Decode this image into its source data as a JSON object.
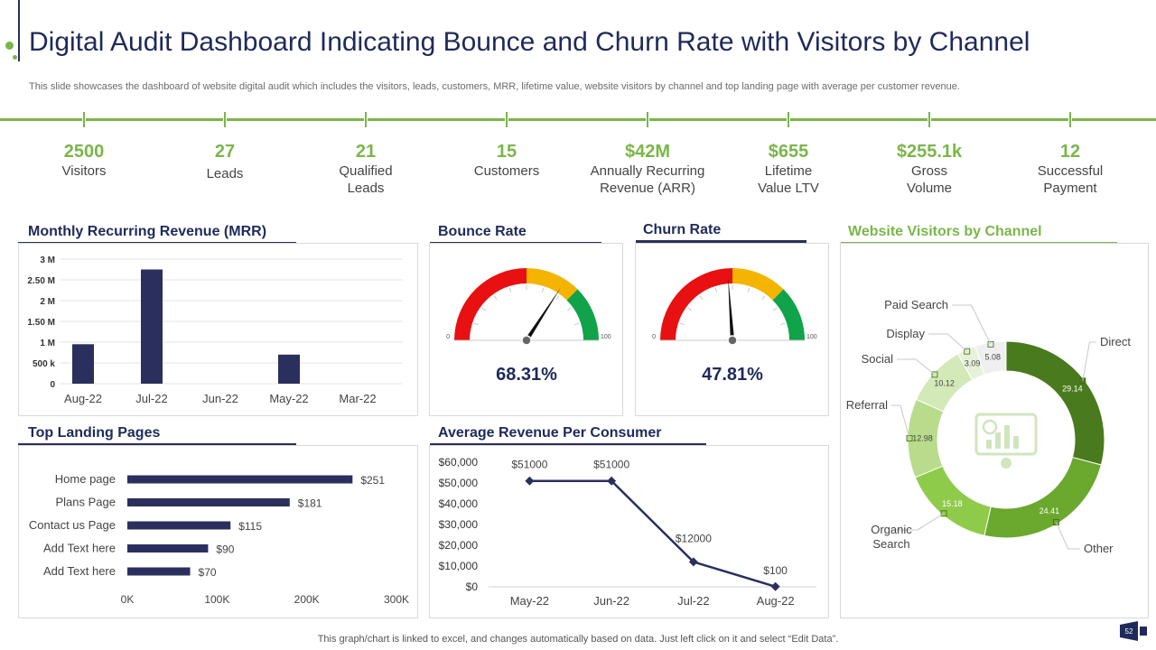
{
  "header": {
    "title": "Digital Audit Dashboard Indicating Bounce and Churn Rate with Visitors by Channel",
    "subtitle": "This slide showcases the dashboard of website digital audit which includes the visitors, leads, customers, MRR, lifetime value, website visitors by channel and top landing page with average per customer revenue."
  },
  "kpis": [
    {
      "value": "2500",
      "label": "Visitors"
    },
    {
      "value": "27",
      "label": "Leads"
    },
    {
      "value": "21",
      "label": "Qualified\nLeads"
    },
    {
      "value": "15",
      "label": "Customers"
    },
    {
      "value": "$42M",
      "label": "Annually  Recurring\nRevenue (ARR)"
    },
    {
      "value": "$655",
      "label": "Lifetime\nValue LTV"
    },
    {
      "value": "$255.1k",
      "label": "Gross\nVolume"
    },
    {
      "value": "12",
      "label": "Successful\nPayment"
    }
  ],
  "sections": {
    "mrr": "Monthly Recurring Revenue (MRR)",
    "bounce": "Bounce Rate",
    "churn": "Churn  Rate",
    "visitors": "Website Visitors  by Channel",
    "landing": "Top Landing Pages",
    "arpc": "Average Revenue Per Consumer"
  },
  "chart_data": [
    {
      "id": "mrr",
      "type": "bar",
      "title": "Monthly Recurring Revenue (MRR)",
      "categories": [
        "Aug-22",
        "Jul-22",
        "Jun-22",
        "May-22",
        "Mar-22"
      ],
      "values": [
        950000,
        2750000,
        0,
        700000,
        0
      ],
      "ylim": [
        0,
        3000000
      ],
      "yticks": [
        0,
        500000,
        1000000,
        1500000,
        2000000,
        2500000,
        3000000
      ],
      "ytick_labels": [
        "0",
        "500 k",
        "1 M",
        "1.50 M",
        "2 M",
        "2.50 M",
        "3 M"
      ],
      "color": "#2b2f5e",
      "grid": true
    },
    {
      "id": "bounce",
      "type": "gauge",
      "title": "Bounce Rate",
      "value": 68.31,
      "label": "68.31%",
      "min_label": "0",
      "max_label": "100",
      "bands": [
        {
          "from": 0,
          "to": 50,
          "color": "#e81010"
        },
        {
          "from": 50,
          "to": 75,
          "color": "#f4b400"
        },
        {
          "from": 75,
          "to": 100,
          "color": "#10a34a"
        }
      ]
    },
    {
      "id": "churn",
      "type": "gauge",
      "title": "Churn  Rate",
      "value": 47.81,
      "label": "47.81%",
      "min_label": "0",
      "max_label": "100",
      "bands": [
        {
          "from": 0,
          "to": 50,
          "color": "#e81010"
        },
        {
          "from": 50,
          "to": 75,
          "color": "#f4b400"
        },
        {
          "from": 75,
          "to": 100,
          "color": "#10a34a"
        }
      ]
    },
    {
      "id": "visitors",
      "type": "pie",
      "title": "Website Visitors  by Channel",
      "donut": true,
      "slices": [
        {
          "name": "Direct",
          "value": 29.14,
          "label": "29.14",
          "color": "#4a7a1e"
        },
        {
          "name": "Other",
          "value": 24.41,
          "label": "24.41",
          "color": "#6aa82e"
        },
        {
          "name": "Organic\nSearch",
          "value": 15.18,
          "label": "15.18",
          "color": "#8fcb4a"
        },
        {
          "name": "Referral",
          "value": 12.98,
          "label": "12.98",
          "color": "#b9dc8c"
        },
        {
          "name": "Social",
          "value": 10.12,
          "label": "10.12",
          "color": "#d3e9b8"
        },
        {
          "name": "Display",
          "value": 3.09,
          "label": "3.09",
          "color": "#e6f2d8"
        },
        {
          "name": "Paid Search",
          "value": 5.08,
          "label": "5.08",
          "color": "#efefef"
        }
      ]
    },
    {
      "id": "landing",
      "type": "bar",
      "orientation": "horizontal",
      "title": "Top Landing Pages",
      "categories": [
        "Home page",
        "Plans Page",
        "Contact us Page",
        "Add Text here",
        "Add Text here"
      ],
      "values": [
        251000,
        181000,
        115000,
        90000,
        70000
      ],
      "value_labels": [
        "$251",
        "$181",
        "$115",
        "$90",
        "$70"
      ],
      "xlim": [
        0,
        300000
      ],
      "xticks": [
        0,
        100000,
        200000,
        300000
      ],
      "xtick_labels": [
        "0K",
        "100K",
        "200K",
        "300K"
      ],
      "color": "#2b2f5e"
    },
    {
      "id": "arpc",
      "type": "line",
      "title": "Average Revenue Per Consumer",
      "categories": [
        "May-22",
        "Jun-22",
        "Jul-22",
        "Aug-22"
      ],
      "values": [
        51000,
        51000,
        12000,
        100
      ],
      "value_labels": [
        "$51000",
        "$51000",
        "$12000",
        "$100"
      ],
      "ylim": [
        0,
        60000
      ],
      "yticks": [
        0,
        10000,
        20000,
        30000,
        40000,
        50000,
        60000
      ],
      "ytick_labels": [
        "$0",
        "$10,000",
        "$20,000",
        "$30,000",
        "$40,000",
        "$50,000",
        "$60,000"
      ],
      "color": "#2b2f5e"
    }
  ],
  "footer": {
    "note": "This graph/chart is linked to excel,  and changes automatically based on data. Just left click on it and select “Edit Data”.",
    "page": "52"
  }
}
